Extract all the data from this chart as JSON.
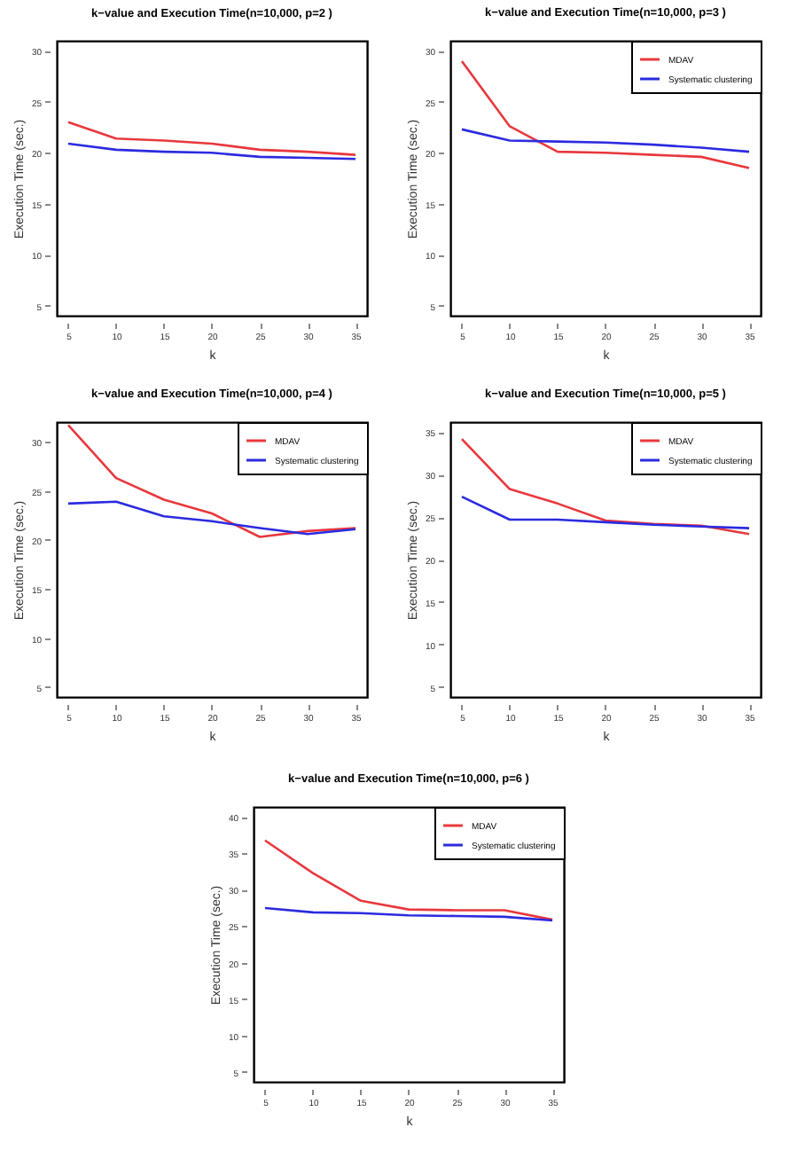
{
  "chart_data": [
    {
      "type": "line",
      "title": "k−value and Execution Time(n=10,000, p=2 )",
      "xlabel": "k",
      "ylabel": "Execution Time (sec.)",
      "x": [
        5,
        10,
        15,
        20,
        25,
        30,
        35
      ],
      "xlim": [
        3.8,
        36.2
      ],
      "xticks": [
        5,
        10,
        15,
        20,
        25,
        30,
        35
      ],
      "ylim": [
        4,
        31
      ],
      "yticks": [
        5,
        10,
        15,
        20,
        25,
        30
      ],
      "legend": false,
      "series": [
        {
          "color": "#e8383d",
          "values": [
            23,
            21.4,
            21.2,
            20.9,
            20.3,
            20.1,
            19.8
          ]
        },
        {
          "color": "#2b2be0",
          "values": [
            20.9,
            20.3,
            20.1,
            20.0,
            19.6,
            19.5,
            19.4
          ]
        }
      ]
    },
    {
      "type": "line",
      "title": "k−value and Execution Time(n=10,000, p=3 )",
      "xlabel": "k",
      "ylabel": "Execution Time (sec.)",
      "x": [
        5,
        10,
        15,
        20,
        25,
        30,
        35
      ],
      "xlim": [
        3.8,
        36.2
      ],
      "xticks": [
        5,
        10,
        15,
        20,
        25,
        30,
        35
      ],
      "ylim": [
        4,
        31
      ],
      "yticks": [
        5,
        10,
        15,
        20,
        25,
        30
      ],
      "legend": "top right",
      "series": [
        {
          "name": "MDAV",
          "color": "#e8383d",
          "values": [
            29,
            22.6,
            20.1,
            20.0,
            19.8,
            19.6,
            18.5
          ]
        },
        {
          "name": "Systematic clustering",
          "color": "#2b2be0",
          "values": [
            22.3,
            21.2,
            21.1,
            21.0,
            20.8,
            20.5,
            20.1
          ]
        }
      ]
    },
    {
      "type": "line",
      "title": "k−value and Execution Time(n=10,000, p=4 )",
      "xlabel": "k",
      "ylabel": "Execution Time (sec.)",
      "x": [
        5,
        10,
        15,
        20,
        25,
        30,
        35
      ],
      "xlim": [
        3.8,
        36.2
      ],
      "xticks": [
        5,
        10,
        15,
        20,
        25,
        30,
        35
      ],
      "ylim": [
        4,
        32
      ],
      "yticks": [
        5,
        10,
        15,
        20,
        25,
        30
      ],
      "legend": "top right",
      "series": [
        {
          "name": "MDAV",
          "color": "#e8383d",
          "values": [
            31.7,
            26.3,
            24.1,
            22.7,
            20.3,
            20.9,
            21.2
          ]
        },
        {
          "name": "Systematic clustering",
          "color": "#2b2be0",
          "values": [
            23.7,
            23.9,
            22.4,
            21.9,
            21.2,
            20.6,
            21.1
          ]
        }
      ]
    },
    {
      "type": "line",
      "title": "k−value and Execution Time(n=10,000, p=5 )",
      "xlabel": "k",
      "ylabel": "Execution Time (sec.)",
      "x": [
        5,
        10,
        15,
        20,
        25,
        30,
        35
      ],
      "xlim": [
        3.8,
        36.2
      ],
      "xticks": [
        5,
        10,
        15,
        20,
        25,
        30,
        35
      ],
      "ylim": [
        3.8,
        36.2
      ],
      "yticks": [
        5,
        10,
        15,
        20,
        25,
        30,
        35
      ],
      "legend": "top right",
      "series": [
        {
          "name": "MDAV",
          "color": "#e8383d",
          "values": [
            34.2,
            28.3,
            26.6,
            24.6,
            24.2,
            24.0,
            23.0
          ]
        },
        {
          "name": "Systematic clustering",
          "color": "#2b2be0",
          "values": [
            27.4,
            24.7,
            24.7,
            24.4,
            24.1,
            23.9,
            23.7
          ]
        }
      ]
    },
    {
      "type": "line",
      "title": "k−value and Execution Time(n=10,000, p=6 )",
      "xlabel": "k",
      "ylabel": "Execution Time (sec.)",
      "x": [
        5,
        10,
        15,
        20,
        25,
        30,
        35
      ],
      "xlim": [
        3.8,
        36.2
      ],
      "xticks": [
        5,
        10,
        15,
        20,
        25,
        30,
        35
      ],
      "ylim": [
        3.6,
        41.4
      ],
      "yticks": [
        5,
        10,
        15,
        20,
        25,
        30,
        35,
        40
      ],
      "legend": "top right",
      "series": [
        {
          "name": "MDAV",
          "color": "#e8383d",
          "values": [
            36.8,
            32.3,
            28.5,
            27.3,
            27.2,
            27.2,
            25.9
          ]
        },
        {
          "name": "Systematic clustering",
          "color": "#2b2be0",
          "values": [
            27.5,
            26.9,
            26.8,
            26.5,
            26.4,
            26.3,
            25.8
          ]
        }
      ]
    }
  ]
}
